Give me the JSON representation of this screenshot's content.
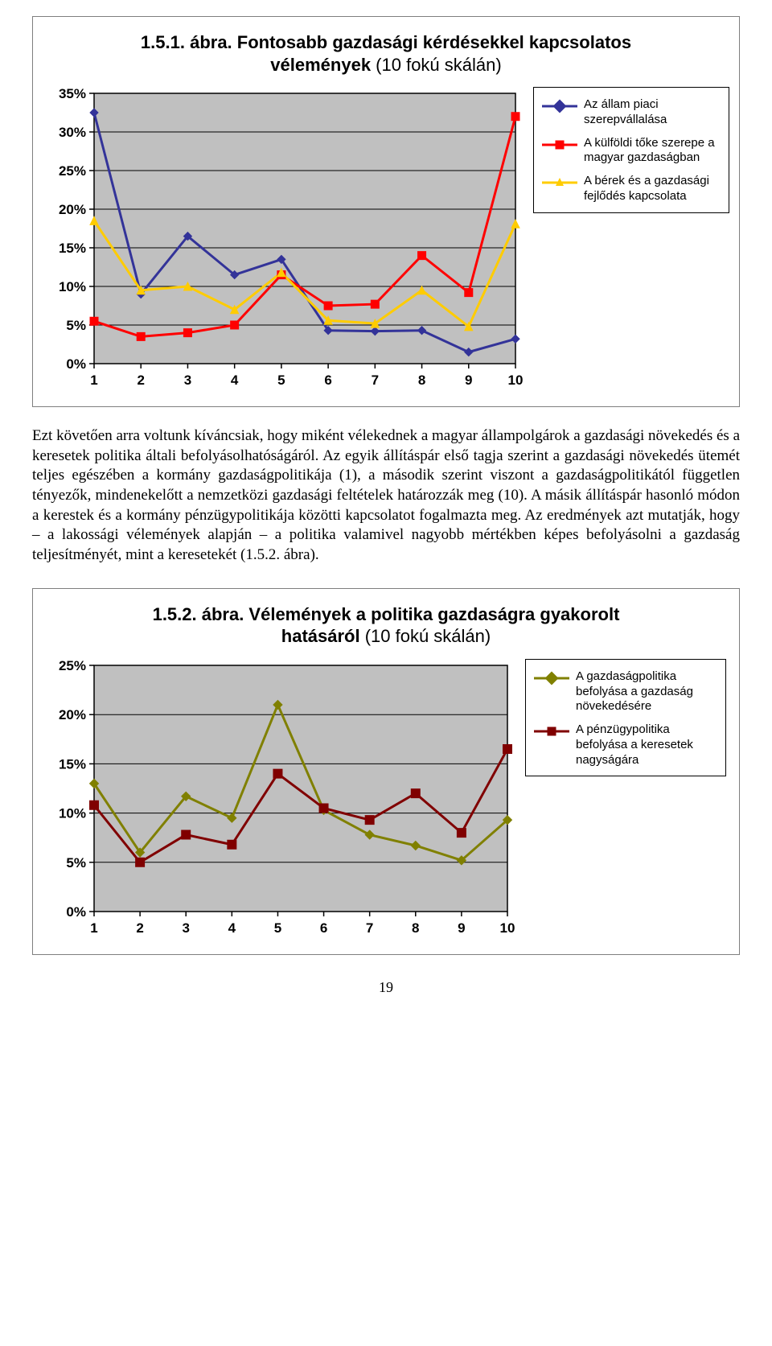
{
  "chart1": {
    "type": "line",
    "title_bold": "1.5.1. ábra. Fontosabb gazdasági kérdésekkel kapcsolatos vélemények",
    "title_normal": " (10 fokú skálán)",
    "title_fontsize": 22,
    "x_categories": [
      "1",
      "2",
      "3",
      "4",
      "5",
      "6",
      "7",
      "8",
      "9",
      "10"
    ],
    "y_ticks": [
      "0%",
      "5%",
      "10%",
      "15%",
      "20%",
      "25%",
      "30%",
      "35%"
    ],
    "ylim": [
      0,
      35
    ],
    "xlim": [
      1,
      10
    ],
    "plot_background": "#c0c0c0",
    "gridline_color": "#000000",
    "axis_color": "#000000",
    "tick_fontsize": 17,
    "marker_size": 8,
    "line_width": 3,
    "series": [
      {
        "name": "Az állam piaci szerepvállalása",
        "color": "#333399",
        "marker": "diamond",
        "marker_fill": "#333399",
        "values": [
          32.5,
          9.0,
          16.5,
          11.5,
          13.5,
          4.3,
          4.2,
          4.3,
          1.5,
          3.2
        ]
      },
      {
        "name": "A külföldi tőke szerepe a magyar gazdaságban",
        "color": "#ff0000",
        "marker": "square",
        "marker_fill": "#ff0000",
        "values": [
          5.5,
          3.5,
          4.0,
          5.0,
          11.5,
          7.5,
          7.7,
          14.0,
          9.2,
          32.0
        ]
      },
      {
        "name": "A bérek és a gazdasági fejlődés kapcsolata",
        "color": "#ffcc00",
        "marker": "triangle",
        "marker_fill": "#ffcc00",
        "values": [
          18.5,
          9.5,
          10.0,
          7.0,
          11.8,
          5.6,
          5.2,
          9.5,
          4.8,
          18.1
        ]
      }
    ],
    "legend_border": "#000000",
    "legend_fontsize": 15
  },
  "body_paragraph": "Ezt követően arra voltunk kíváncsiak, hogy miként vélekednek a magyar állampolgárok a gazdasági növekedés és a keresetek politika általi befolyásolhatóságáról. Az egyik állításpár első tagja szerint a gazdasági növekedés ütemét teljes egészében a kormány gazdaságpolitikája (1), a második szerint viszont a gazdaságpolitikától független tényezők, mindenekelőtt a nemzetközi gazdasági feltételek határozzák meg (10). A másik állításpár hasonló módon a kerestek és a kormány pénzügypolitikája közötti kapcsolatot fogalmazta meg. Az eredmények azt mutatják, hogy – a lakossági vélemények alapján – a politika valamivel nagyobb mértékben képes befolyásolni a gazdaság teljesítményét, mint a keresetekét (1.5.2. ábra).",
  "chart2": {
    "type": "line",
    "title_bold": "1.5.2. ábra. Vélemények a politika gazdaságra gyakorolt hatásáról",
    "title_normal": " (10 fokú skálán)",
    "title_fontsize": 22,
    "x_categories": [
      "1",
      "2",
      "3",
      "4",
      "5",
      "6",
      "7",
      "8",
      "9",
      "10"
    ],
    "y_ticks": [
      "0%",
      "5%",
      "10%",
      "15%",
      "20%",
      "25%"
    ],
    "ylim": [
      0,
      25
    ],
    "xlim": [
      1,
      10
    ],
    "plot_background": "#c0c0c0",
    "gridline_color": "#000000",
    "axis_color": "#000000",
    "tick_fontsize": 17,
    "marker_size": 9,
    "line_width": 3,
    "series": [
      {
        "name": "A gazdaságpolitika befolyása a gazdaság növekedésére",
        "color": "#808000",
        "marker": "diamond",
        "marker_fill": "#808000",
        "values": [
          13.0,
          6.0,
          11.7,
          9.5,
          21.0,
          10.3,
          7.8,
          6.7,
          5.2,
          9.3
        ]
      },
      {
        "name": "A pénzügypolitika befolyása a keresetek nagyságára",
        "color": "#800000",
        "marker": "square",
        "marker_fill": "#800000",
        "values": [
          10.8,
          5.0,
          7.8,
          6.8,
          14.0,
          10.5,
          9.3,
          12.0,
          8.0,
          16.5
        ]
      }
    ],
    "legend_border": "#000000",
    "legend_fontsize": 15
  },
  "page_number": "19"
}
